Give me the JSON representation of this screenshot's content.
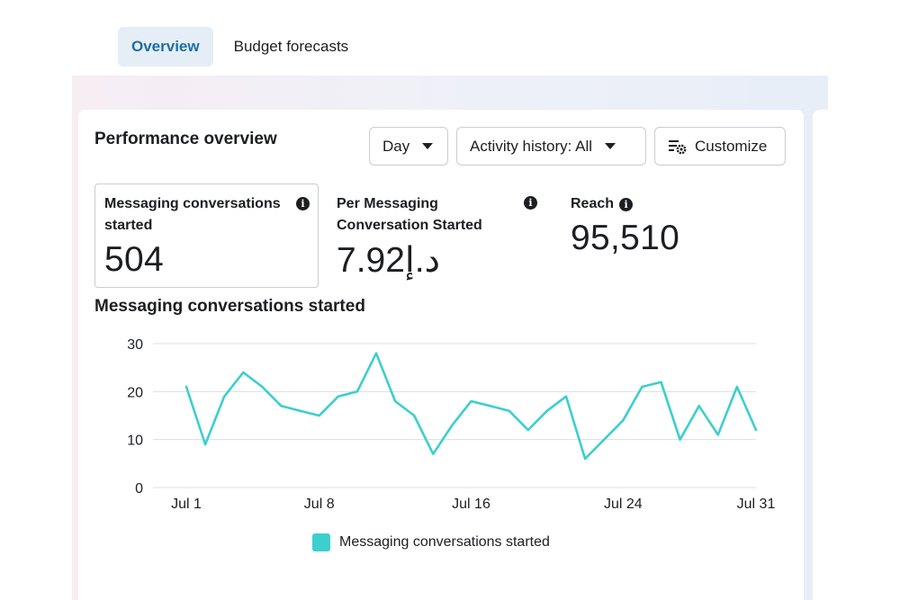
{
  "tabs": [
    {
      "label": "Overview",
      "active": true
    },
    {
      "label": "Budget forecasts",
      "active": false
    }
  ],
  "card": {
    "title": "Performance overview",
    "day_button": "Day",
    "activity_button": "Activity history: All",
    "customize_button": "Customize"
  },
  "metrics": [
    {
      "label": "Messaging conversations started",
      "value": "504"
    },
    {
      "label": "Per Messaging Conversation Started",
      "value": "7.92د.إ"
    },
    {
      "label": "Reach",
      "value": "95,510"
    }
  ],
  "chart_title": "Messaging conversations started",
  "legend_label": "Messaging conversations started",
  "colors": {
    "line": "#3ccfce",
    "accent": "#1b6ea7",
    "grid": "#dcdfe3"
  },
  "chart_data": {
    "type": "line",
    "x": [
      "Jul 1",
      "Jul 2",
      "Jul 3",
      "Jul 4",
      "Jul 5",
      "Jul 6",
      "Jul 7",
      "Jul 8",
      "Jul 9",
      "Jul 10",
      "Jul 11",
      "Jul 12",
      "Jul 13",
      "Jul 14",
      "Jul 15",
      "Jul 16",
      "Jul 17",
      "Jul 18",
      "Jul 19",
      "Jul 20",
      "Jul 21",
      "Jul 22",
      "Jul 23",
      "Jul 24",
      "Jul 25",
      "Jul 26",
      "Jul 27",
      "Jul 28",
      "Jul 29",
      "Jul 30",
      "Jul 31"
    ],
    "xticks": [
      "Jul 1",
      "Jul 8",
      "Jul 16",
      "Jul 24",
      "Jul 31"
    ],
    "yticks": [
      0,
      10,
      20,
      30
    ],
    "ylim": [
      0,
      30
    ],
    "grid": true,
    "legend": "bottom",
    "series": [
      {
        "name": "Messaging conversations started",
        "values": [
          21,
          9,
          19,
          24,
          21,
          17,
          16,
          15,
          19,
          20,
          28,
          18,
          15,
          7,
          13,
          18,
          17,
          16,
          12,
          16,
          19,
          6,
          10,
          14,
          21,
          22,
          10,
          17,
          11,
          21,
          12
        ]
      }
    ]
  }
}
